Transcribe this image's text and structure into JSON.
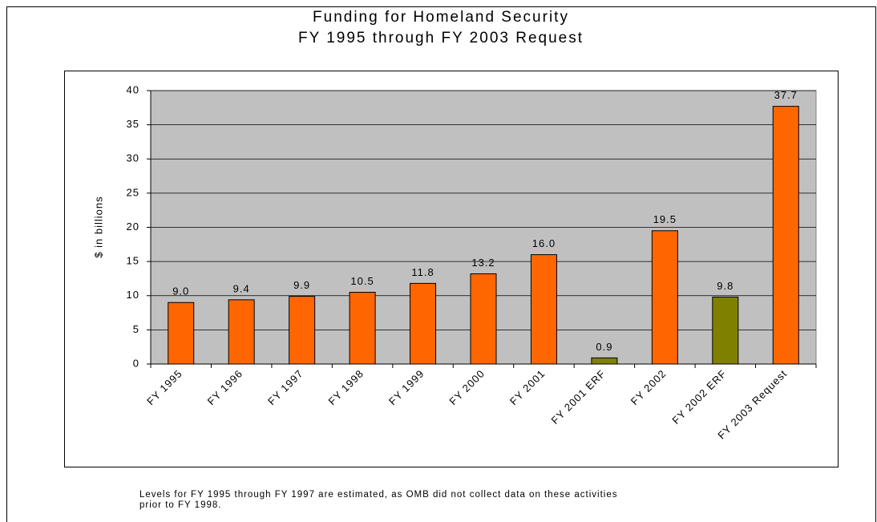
{
  "chart_data": {
    "type": "bar",
    "title": "Funding for Homeland Security",
    "subtitle": "FY 1995 through FY 2003 Request",
    "y_label": "$ in billions",
    "categories": [
      "FY 1995",
      "FY 1996",
      "FY 1997",
      "FY 1998",
      "FY 1999",
      "FY 2000",
      "FY 2001",
      "FY 2001 ERF",
      "FY 2002",
      "FY 2002 ERF",
      "FY 2003 Request"
    ],
    "values": [
      9.0,
      9.4,
      9.9,
      10.5,
      11.8,
      13.2,
      16.0,
      0.9,
      19.5,
      9.8,
      37.7
    ],
    "value_labels": [
      "9.0",
      "9.4",
      "9.9",
      "10.5",
      "11.8",
      "13.2",
      "16.0",
      "0.9",
      "19.5",
      "9.8",
      "37.7"
    ],
    "colors": [
      "#ff6600",
      "#ff6600",
      "#ff6600",
      "#ff6600",
      "#ff6600",
      "#ff6600",
      "#ff6600",
      "#808000",
      "#ff6600",
      "#808000",
      "#ff6600"
    ],
    "ylim": [
      0,
      40
    ],
    "yticks": [
      0,
      5,
      10,
      15,
      20,
      25,
      30,
      35,
      40
    ],
    "grid": true,
    "note": [
      "Levels for FY 1995 through FY 1997 are estimated, as OMB did not collect data on these activities",
      "prior to FY 1998."
    ]
  }
}
